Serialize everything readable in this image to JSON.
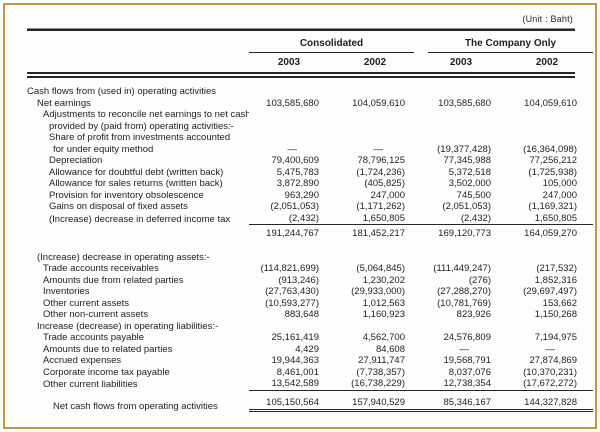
{
  "unit_label": "(Unit : Baht)",
  "colors": {
    "frame_border": "#c59a3d",
    "text": "#1f1f1f",
    "rule": "#262626"
  },
  "header": {
    "groups": [
      {
        "label": "Consolidated"
      },
      {
        "label": "The Company Only"
      }
    ],
    "years": [
      "2003",
      "2002",
      "2003",
      "2002"
    ]
  },
  "rows": [
    {
      "label": "Cash flows from (used in) operating activities",
      "indent": 0,
      "values": [
        "",
        "",
        "",
        ""
      ]
    },
    {
      "label": "Net earnings",
      "indent": 1,
      "values": [
        "103,585,680",
        "104,059,610",
        "103,585,680",
        "104,059,610"
      ]
    },
    {
      "label": "Adjustments to reconcile net earnings to net cash",
      "indent": 2,
      "values": [
        "",
        "",
        "",
        ""
      ]
    },
    {
      "label": "provided by (paid from) operating activities:-",
      "indent": 3,
      "values": [
        "",
        "",
        "",
        ""
      ]
    },
    {
      "label": "Share of profit from investments accounted",
      "indent": 3,
      "values": [
        "",
        "",
        "",
        ""
      ]
    },
    {
      "label": "for under equity method",
      "indent": 4,
      "values": [
        "—",
        "—",
        "(19,377,428)",
        "(16,364,098)"
      ]
    },
    {
      "label": "Depreciation",
      "indent": 3,
      "values": [
        "79,400,609",
        "78,796,125",
        "77,345,988",
        "77,256,212"
      ]
    },
    {
      "label": "Allowance for doubtful debt (written back)",
      "indent": 3,
      "values": [
        "5,475,783",
        "(1,724,236)",
        "5,372,518",
        "(1,725,938)"
      ]
    },
    {
      "label": "Allowance for sales returns (written back)",
      "indent": 3,
      "values": [
        "3,872,890",
        "(405,825)",
        "3,502,000",
        "105,000"
      ]
    },
    {
      "label": "Provision for inventory obsolescence",
      "indent": 3,
      "values": [
        "963,290",
        "247,000",
        "745,500",
        "247,000"
      ]
    },
    {
      "label": "Gains on disposal of fixed assets",
      "indent": 3,
      "values": [
        "(2,051,053)",
        "(1,171,262)",
        "(2,051,053)",
        "(1,169,321)"
      ]
    },
    {
      "label": "(Increase) decrease in deferred income tax",
      "indent": 3,
      "values": [
        "(2,432)",
        "1,650,805",
        "(2,432)",
        "1,650,805"
      ],
      "rule": "single"
    },
    {
      "label": "",
      "indent": 0,
      "values": [
        "191,244,767",
        "181,452,217",
        "169,120,773",
        "164,059,270"
      ],
      "gap": 3
    },
    {
      "label": "(Increase) decrease in operating assets:-",
      "indent": 1,
      "values": [
        "",
        "",
        "",
        ""
      ],
      "gap": 12
    },
    {
      "label": "Trade accounts receivables",
      "indent": 2,
      "values": [
        "(114,821,699)",
        "(5,064,845)",
        "(111,449,247)",
        "(217,532)"
      ]
    },
    {
      "label": "Amounts due from related parties",
      "indent": 2,
      "values": [
        "(913,246)",
        "1,230,202",
        "(276)",
        "1,852,316"
      ]
    },
    {
      "label": "Inventories",
      "indent": 2,
      "values": [
        "(27,763,430)",
        "(29,933,000)",
        "(27,288,270)",
        "(29,697,497)"
      ]
    },
    {
      "label": "Other current assets",
      "indent": 2,
      "values": [
        "(10,593,277)",
        "1,012,563",
        "(10,781,769)",
        "153,662"
      ]
    },
    {
      "label": "Other non-current assets",
      "indent": 2,
      "values": [
        "883,648",
        "1,160,923",
        "823,926",
        "1,150,268"
      ]
    },
    {
      "label": "Increase (decrease) in operating liabilities:-",
      "indent": 1,
      "values": [
        "",
        "",
        "",
        ""
      ]
    },
    {
      "label": "Trade accounts payable",
      "indent": 2,
      "values": [
        "25,161,419",
        "4,562,700",
        "24,576,809",
        "7,194,975"
      ]
    },
    {
      "label": "Amounts due to related parties",
      "indent": 2,
      "values": [
        "4,429",
        "84,608",
        "—",
        "—"
      ]
    },
    {
      "label": "Accrued expenses",
      "indent": 2,
      "values": [
        "19,944,363",
        "27,911,747",
        "19,568,791",
        "27,874,869"
      ]
    },
    {
      "label": "Corporate income tax payable",
      "indent": 2,
      "values": [
        "8,461,001",
        "(7,738,357)",
        "8,037,076",
        "(10,370,231)"
      ]
    },
    {
      "label": "Other current liabilities",
      "indent": 2,
      "values": [
        "13,542,589",
        "(16,738,229)",
        "12,738,354",
        "(17,672,272)"
      ],
      "rule": "single"
    },
    {
      "label": "Net cash flows from operating activities",
      "indent": 4,
      "values": [
        "105,150,564",
        "157,940,529",
        "85,346,167",
        "144,327,828"
      ],
      "rule": "double",
      "gap": 6
    }
  ]
}
